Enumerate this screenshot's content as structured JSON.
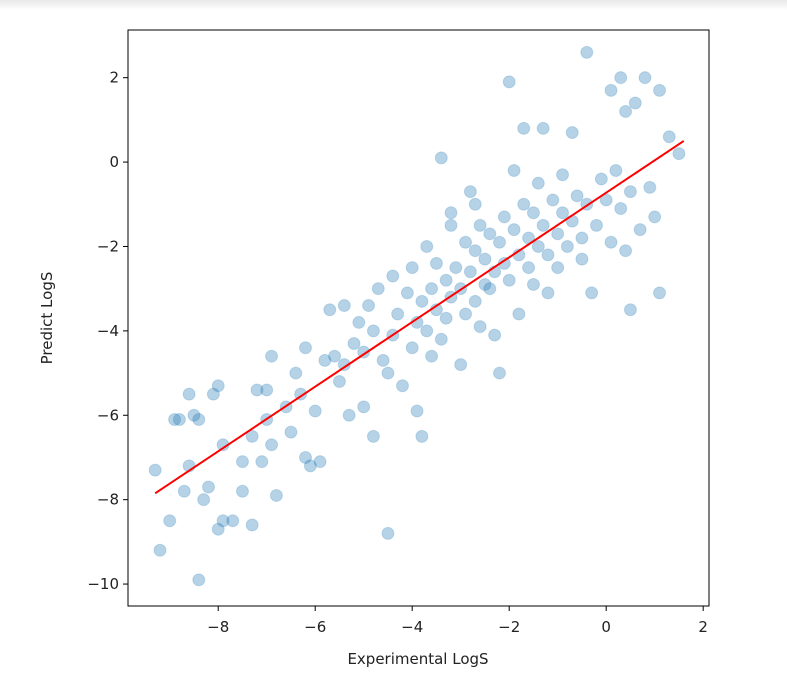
{
  "chart_data": {
    "type": "scatter",
    "x_label": "Experimental LogS",
    "y_label": "Predict LogS",
    "xlim": [
      -9.86,
      2.12
    ],
    "ylim": [
      -10.52,
      3.13
    ],
    "xticks": [
      {
        "value": -8,
        "label": "−8"
      },
      {
        "value": -6,
        "label": "−6"
      },
      {
        "value": -4,
        "label": "−4"
      },
      {
        "value": -2,
        "label": "−2"
      },
      0,
      2
    ],
    "yticks": [
      {
        "value": -10,
        "label": "−10"
      },
      {
        "value": -8,
        "label": "−8"
      },
      {
        "value": -6,
        "label": "−6"
      },
      {
        "value": -4,
        "label": "−4"
      },
      {
        "value": -2,
        "label": "−2"
      },
      0,
      2
    ],
    "grid": false,
    "series": [
      {
        "color": "#1f77b4",
        "x": [
          -9.3,
          -9.2,
          -9.0,
          -8.9,
          -8.8,
          -8.7,
          -8.6,
          -8.6,
          -8.5,
          -8.4,
          -8.4,
          -8.3,
          -8.2,
          -8.1,
          -8.0,
          -8.0,
          -7.9,
          -7.9,
          -7.7,
          -7.5,
          -7.5,
          -7.3,
          -7.3,
          -7.2,
          -7.1,
          -7.0,
          -7.0,
          -6.9,
          -6.9,
          -6.8,
          -6.6,
          -6.5,
          -6.4,
          -6.3,
          -6.2,
          -6.2,
          -6.1,
          -6.0,
          -5.9,
          -5.8,
          -5.7,
          -5.6,
          -5.5,
          -5.4,
          -5.4,
          -5.3,
          -5.2,
          -5.1,
          -5.0,
          -5.0,
          -4.9,
          -4.8,
          -4.8,
          -4.7,
          -4.6,
          -4.5,
          -4.4,
          -4.4,
          -4.3,
          -4.2,
          -4.1,
          -4.0,
          -4.0,
          -3.9,
          -3.9,
          -3.8,
          -3.8,
          -3.7,
          -3.7,
          -3.6,
          -3.6,
          -3.5,
          -3.5,
          -3.4,
          -3.4,
          -3.3,
          -3.3,
          -3.2,
          -3.2,
          -3.1,
          -3.0,
          -3.0,
          -2.9,
          -2.9,
          -2.8,
          -2.8,
          -2.7,
          -2.7,
          -2.6,
          -2.6,
          -2.5,
          -2.5,
          -2.4,
          -2.4,
          -2.3,
          -2.3,
          -2.2,
          -2.2,
          -2.1,
          -2.1,
          -2.0,
          -2.0,
          -1.9,
          -1.9,
          -1.8,
          -1.8,
          -1.7,
          -1.7,
          -1.6,
          -1.6,
          -1.5,
          -1.5,
          -1.4,
          -1.4,
          -1.3,
          -1.3,
          -1.2,
          -1.2,
          -1.1,
          -1.0,
          -1.0,
          -0.9,
          -0.9,
          -0.8,
          -0.7,
          -0.7,
          -0.6,
          -0.5,
          -0.5,
          -0.4,
          -0.3,
          -0.2,
          -0.1,
          0.0,
          0.1,
          0.2,
          0.3,
          0.3,
          0.4,
          0.4,
          0.5,
          0.5,
          0.6,
          0.7,
          0.8,
          0.9,
          1.0,
          1.1,
          1.1,
          1.3,
          1.5,
          -0.4,
          0.1,
          -4.5,
          -3.2,
          -2.7
        ],
        "values": [
          -7.3,
          -9.2,
          -8.5,
          -6.1,
          -6.1,
          -7.8,
          -7.2,
          -5.5,
          -6.0,
          -6.1,
          -9.9,
          -8.0,
          -7.7,
          -5.5,
          -8.7,
          -5.3,
          -8.5,
          -6.7,
          -8.5,
          -7.1,
          -7.8,
          -8.6,
          -6.5,
          -5.4,
          -7.1,
          -6.1,
          -5.4,
          -4.6,
          -6.7,
          -7.9,
          -5.8,
          -6.4,
          -5.0,
          -5.5,
          -4.4,
          -7.0,
          -7.2,
          -5.9,
          -7.1,
          -4.7,
          -3.5,
          -4.6,
          -5.2,
          -3.4,
          -4.8,
          -6.0,
          -4.3,
          -3.8,
          -5.8,
          -4.5,
          -3.4,
          -4.0,
          -6.5,
          -3.0,
          -4.7,
          -5.0,
          -4.1,
          -2.7,
          -3.6,
          -5.3,
          -3.1,
          -4.4,
          -2.5,
          -3.8,
          -5.9,
          -3.3,
          -6.5,
          -4.0,
          -2.0,
          -4.6,
          -3.0,
          -3.5,
          -2.4,
          -4.2,
          0.1,
          -2.8,
          -3.7,
          -1.2,
          -3.2,
          -2.5,
          -4.8,
          -3.0,
          -1.9,
          -3.6,
          -2.6,
          -0.7,
          -3.3,
          -2.1,
          -3.9,
          -1.5,
          -2.9,
          -2.3,
          -3.0,
          -1.7,
          -2.6,
          -4.1,
          -1.9,
          -5.0,
          -2.4,
          -1.3,
          -2.8,
          1.9,
          -1.6,
          -0.2,
          -2.2,
          -3.6,
          -1.0,
          0.8,
          -2.5,
          -1.8,
          -1.2,
          -2.9,
          -0.5,
          -2.0,
          -1.5,
          0.8,
          -3.1,
          -2.2,
          -0.9,
          -1.7,
          -2.5,
          -1.2,
          -0.3,
          -2.0,
          -1.4,
          0.7,
          -0.8,
          -1.8,
          -2.3,
          -1.0,
          -3.1,
          -1.5,
          -0.4,
          -0.9,
          -1.9,
          -0.2,
          -1.1,
          2.0,
          -2.1,
          1.2,
          -3.5,
          -0.7,
          1.4,
          -1.6,
          2.0,
          -0.6,
          -1.3,
          1.7,
          -3.1,
          0.6,
          0.2,
          2.6,
          1.7,
          -8.8,
          -1.5,
          -1.0
        ]
      },
      {
        "color": "#ff0000",
        "line": true,
        "x": [
          -9.3,
          1.6
        ],
        "values": [
          -7.85,
          0.5
        ]
      }
    ]
  }
}
